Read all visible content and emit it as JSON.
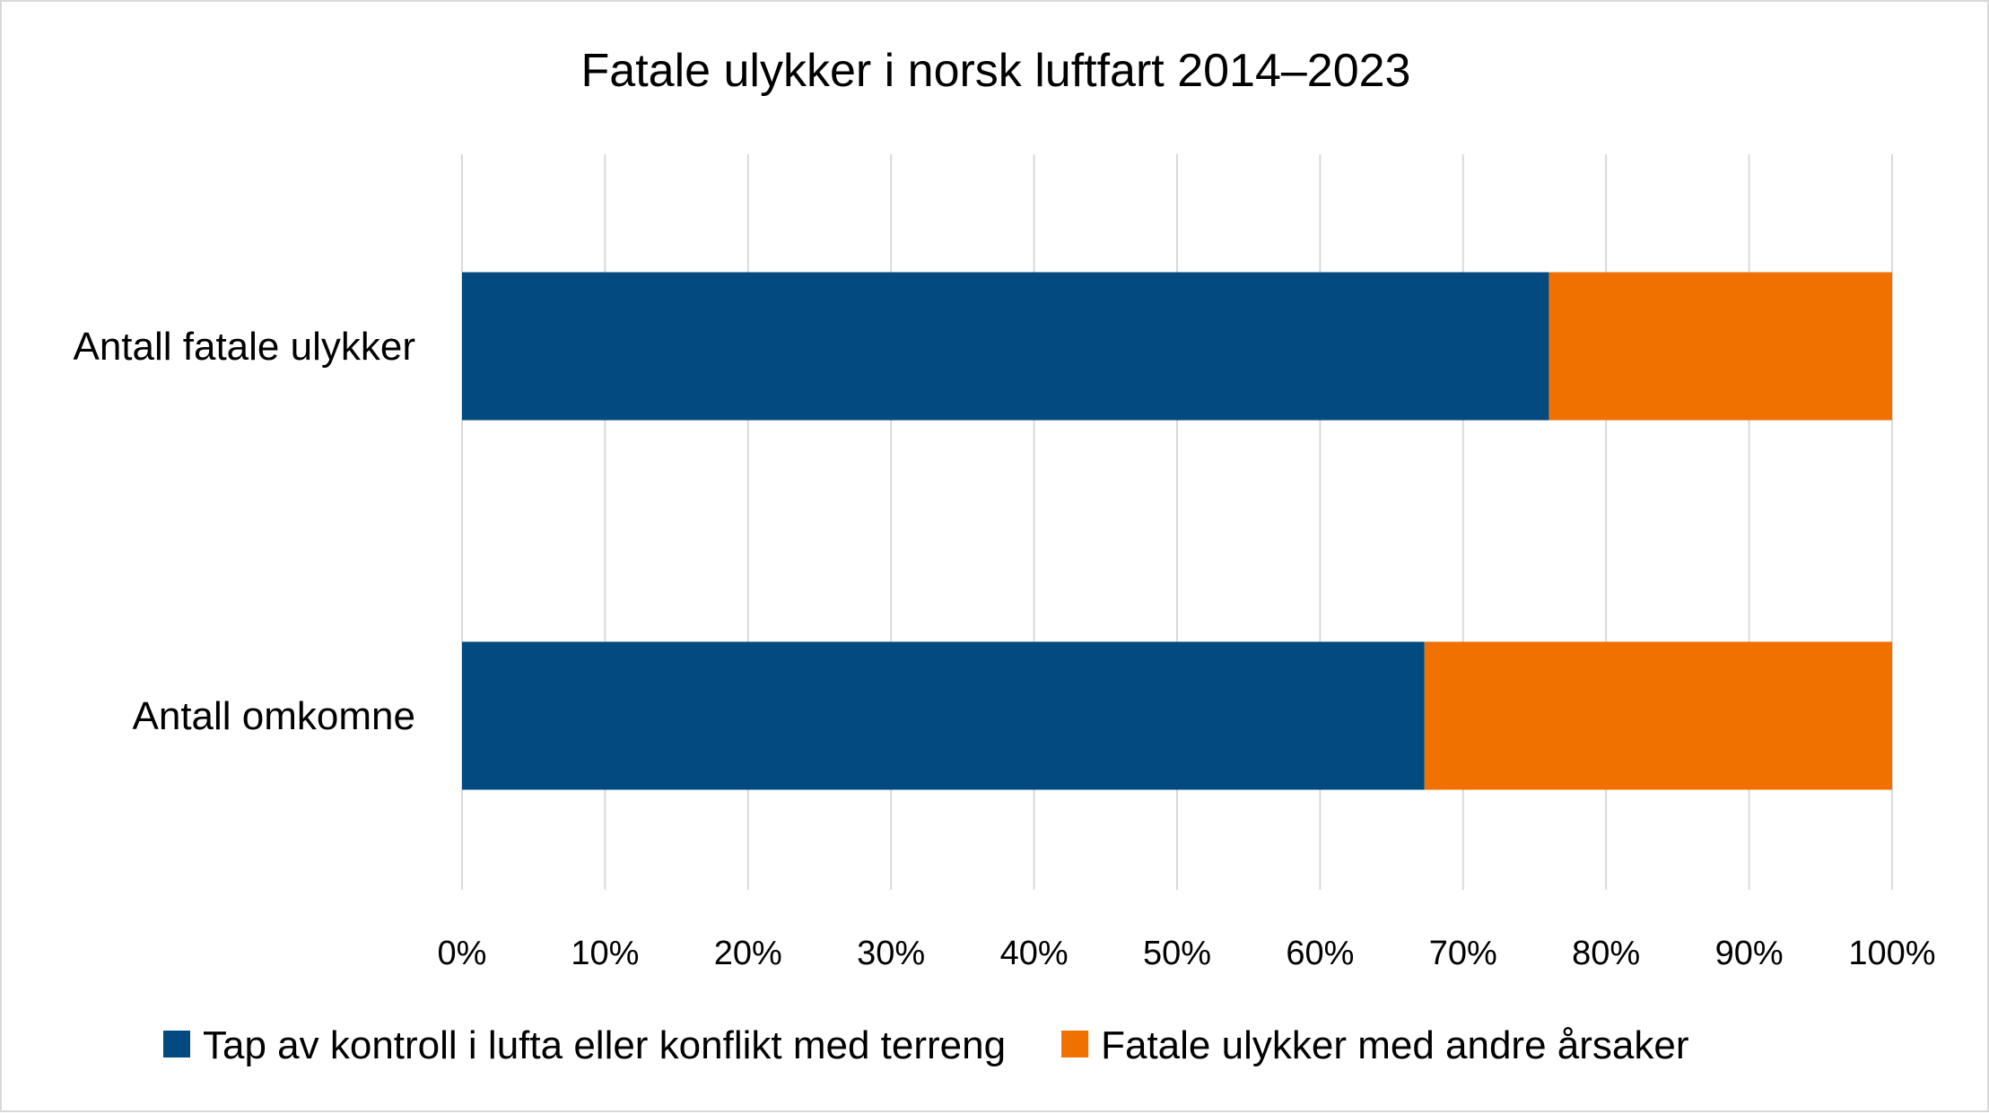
{
  "chart_data": {
    "type": "bar",
    "orientation": "horizontal",
    "stacked": "percent",
    "title": "Fatale ulykker i norsk luftfart 2014–2023",
    "categories": [
      "Antall fatale ulykker",
      "Antall omkomne"
    ],
    "series": [
      {
        "name": "Tap av kontroll i lufta eller konflikt med terreng",
        "color": "#034a80",
        "values": [
          76,
          67.3
        ]
      },
      {
        "name": "Fatale ulykker med andre årsaker",
        "color": "#f07000",
        "values": [
          24,
          32.7
        ]
      }
    ],
    "xlim": [
      0,
      100
    ],
    "xticks": [
      "0%",
      "10%",
      "20%",
      "30%",
      "40%",
      "50%",
      "60%",
      "70%",
      "80%",
      "90%",
      "100%"
    ],
    "grid": "vertical",
    "legend_position": "bottom"
  }
}
